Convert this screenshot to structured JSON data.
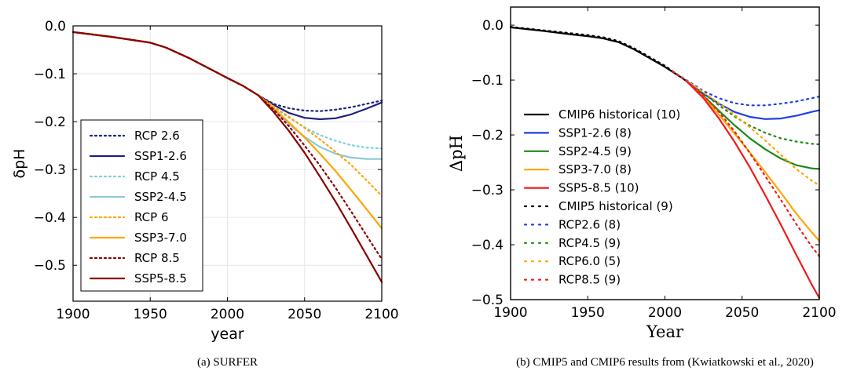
{
  "chart_data": [
    {
      "type": "line",
      "caption": "(a) SURFER",
      "xlabel": "year",
      "ylabel": "δpH",
      "xlim": [
        1900,
        2100
      ],
      "ylim": [
        -0.575,
        0
      ],
      "xticks": [
        1900,
        1950,
        2000,
        2050,
        2100
      ],
      "yticks": [
        0.0,
        -0.1,
        -0.2,
        -0.3,
        -0.4,
        -0.5
      ],
      "ytick_labels": [
        "0.0",
        "−0.1",
        "−0.2",
        "−0.3",
        "−0.4",
        "−0.5"
      ],
      "grid": true,
      "legend_position": "lower-left",
      "common_history": {
        "x": [
          1900,
          1925,
          1950,
          1960,
          1975,
          1990,
          2000,
          2010,
          2020
        ],
        "y": [
          -0.013,
          -0.023,
          -0.035,
          -0.045,
          -0.067,
          -0.092,
          -0.109,
          -0.125,
          -0.145
        ]
      },
      "series": [
        {
          "name": "RCP 2.6",
          "color": "#1a237e",
          "dash": "dot",
          "x": [
            2020,
            2030,
            2040,
            2050,
            2060,
            2070,
            2080,
            2090,
            2100
          ],
          "y": [
            -0.145,
            -0.163,
            -0.172,
            -0.177,
            -0.178,
            -0.175,
            -0.17,
            -0.163,
            -0.156
          ]
        },
        {
          "name": "SSP1-2.6",
          "color": "#1a237e",
          "dash": "solid",
          "x": [
            2020,
            2030,
            2040,
            2050,
            2060,
            2070,
            2080,
            2090,
            2100
          ],
          "y": [
            -0.145,
            -0.165,
            -0.182,
            -0.192,
            -0.195,
            -0.193,
            -0.185,
            -0.173,
            -0.16
          ]
        },
        {
          "name": "RCP 4.5",
          "color": "#7ecfdf",
          "dash": "dot",
          "x": [
            2020,
            2030,
            2040,
            2050,
            2060,
            2070,
            2080,
            2090,
            2100
          ],
          "y": [
            -0.145,
            -0.17,
            -0.192,
            -0.212,
            -0.228,
            -0.24,
            -0.249,
            -0.254,
            -0.256
          ]
        },
        {
          "name": "SSP2-4.5",
          "color": "#8ec9d8",
          "dash": "solid",
          "x": [
            2020,
            2030,
            2040,
            2050,
            2060,
            2070,
            2080,
            2090,
            2100
          ],
          "y": [
            -0.145,
            -0.175,
            -0.205,
            -0.232,
            -0.253,
            -0.267,
            -0.275,
            -0.278,
            -0.278
          ]
        },
        {
          "name": "RCP 6",
          "color": "#ffa500",
          "dash": "dot",
          "x": [
            2020,
            2030,
            2040,
            2050,
            2060,
            2070,
            2080,
            2090,
            2100
          ],
          "y": [
            -0.145,
            -0.168,
            -0.19,
            -0.213,
            -0.237,
            -0.263,
            -0.29,
            -0.322,
            -0.355
          ]
        },
        {
          "name": "SSP3-7.0",
          "color": "#ffa500",
          "dash": "solid",
          "x": [
            2020,
            2030,
            2040,
            2050,
            2060,
            2070,
            2080,
            2090,
            2100
          ],
          "y": [
            -0.145,
            -0.172,
            -0.202,
            -0.233,
            -0.267,
            -0.303,
            -0.342,
            -0.382,
            -0.423
          ]
        },
        {
          "name": "RCP 8.5",
          "color": "#8b0000",
          "dash": "dot",
          "x": [
            2020,
            2030,
            2040,
            2050,
            2060,
            2070,
            2080,
            2090,
            2100
          ],
          "y": [
            -0.145,
            -0.175,
            -0.21,
            -0.25,
            -0.292,
            -0.338,
            -0.387,
            -0.437,
            -0.487
          ]
        },
        {
          "name": "SSP5-8.5",
          "color": "#8b0000",
          "dash": "solid",
          "x": [
            2020,
            2030,
            2040,
            2050,
            2060,
            2070,
            2080,
            2090,
            2100
          ],
          "y": [
            -0.145,
            -0.18,
            -0.22,
            -0.265,
            -0.315,
            -0.367,
            -0.422,
            -0.478,
            -0.535
          ]
        }
      ]
    },
    {
      "type": "line",
      "caption": "(b) CMIP5 and CMIP6 results from (Kwiatkowski et al., 2020)",
      "xlabel": "Year",
      "ylabel": "ΔpH",
      "xlim": [
        1900,
        2100
      ],
      "ylim": [
        -0.5,
        0.033
      ],
      "xticks": [
        1900,
        1950,
        2000,
        2050,
        2100
      ],
      "yticks": [
        0.0,
        -0.1,
        -0.2,
        -0.3,
        -0.4,
        -0.5
      ],
      "ytick_labels": [
        "0.0",
        "−0.1",
        "−0.2",
        "−0.3",
        "−0.4",
        "−0.5"
      ],
      "grid": false,
      "legend_position": "center-left",
      "series": [
        {
          "name": "CMIP6 historical (10)",
          "color": "#000000",
          "dash": "solid",
          "x": [
            1900,
            1920,
            1940,
            1950,
            1960,
            1970,
            1980,
            1990,
            2000,
            2010,
            2014
          ],
          "y": [
            -0.004,
            -0.01,
            -0.017,
            -0.02,
            -0.024,
            -0.031,
            -0.044,
            -0.06,
            -0.076,
            -0.094,
            -0.102
          ]
        },
        {
          "name": "SSP1-2.6 (8)",
          "color": "#1f3fe0",
          "dash": "solid",
          "x": [
            2014,
            2025,
            2035,
            2045,
            2055,
            2065,
            2075,
            2085,
            2095,
            2100
          ],
          "y": [
            -0.102,
            -0.125,
            -0.143,
            -0.158,
            -0.167,
            -0.171,
            -0.17,
            -0.165,
            -0.158,
            -0.155
          ]
        },
        {
          "name": "SSP2-4.5 (9)",
          "color": "#1a8a1a",
          "dash": "solid",
          "x": [
            2014,
            2025,
            2035,
            2045,
            2055,
            2065,
            2075,
            2085,
            2095,
            2100
          ],
          "y": [
            -0.102,
            -0.129,
            -0.156,
            -0.182,
            -0.206,
            -0.226,
            -0.243,
            -0.255,
            -0.261,
            -0.262
          ]
        },
        {
          "name": "SSP3-7.0 (8)",
          "color": "#ffa500",
          "dash": "solid",
          "x": [
            2014,
            2025,
            2035,
            2045,
            2055,
            2065,
            2075,
            2085,
            2095,
            2100
          ],
          "y": [
            -0.102,
            -0.131,
            -0.163,
            -0.197,
            -0.232,
            -0.268,
            -0.305,
            -0.343,
            -0.377,
            -0.393
          ]
        },
        {
          "name": "SSP5-8.5 (10)",
          "color": "#ee1c1c",
          "dash": "solid",
          "x": [
            2014,
            2025,
            2035,
            2045,
            2055,
            2065,
            2075,
            2085,
            2095,
            2100
          ],
          "y": [
            -0.102,
            -0.133,
            -0.17,
            -0.212,
            -0.259,
            -0.31,
            -0.363,
            -0.418,
            -0.472,
            -0.497
          ]
        },
        {
          "name": "CMIP5 historical (9)",
          "color": "#000000",
          "dash": "dot",
          "x": [
            1900,
            1920,
            1940,
            1950,
            1960,
            1970,
            1980,
            1990,
            2000,
            2005
          ],
          "y": [
            -0.003,
            -0.009,
            -0.015,
            -0.018,
            -0.022,
            -0.029,
            -0.042,
            -0.058,
            -0.074,
            -0.084
          ]
        },
        {
          "name": "RCP2.6 (8)",
          "color": "#1f3fe0",
          "dash": "dot",
          "x": [
            2005,
            2015,
            2025,
            2035,
            2045,
            2055,
            2065,
            2075,
            2085,
            2095,
            2100
          ],
          "y": [
            -0.084,
            -0.102,
            -0.12,
            -0.133,
            -0.142,
            -0.146,
            -0.146,
            -0.143,
            -0.139,
            -0.133,
            -0.13
          ]
        },
        {
          "name": "RCP4.5 (9)",
          "color": "#1a8a1a",
          "dash": "dot",
          "x": [
            2005,
            2015,
            2025,
            2035,
            2045,
            2055,
            2065,
            2075,
            2085,
            2095,
            2100
          ],
          "y": [
            -0.084,
            -0.103,
            -0.124,
            -0.146,
            -0.166,
            -0.183,
            -0.196,
            -0.206,
            -0.212,
            -0.216,
            -0.217
          ]
        },
        {
          "name": "RCP6.0 (5)",
          "color": "#ffa500",
          "dash": "dot",
          "x": [
            2005,
            2015,
            2025,
            2035,
            2045,
            2055,
            2065,
            2075,
            2085,
            2095,
            2100
          ],
          "y": [
            -0.084,
            -0.103,
            -0.122,
            -0.142,
            -0.163,
            -0.186,
            -0.21,
            -0.236,
            -0.262,
            -0.283,
            -0.292
          ]
        },
        {
          "name": "RCP8.5 (9)",
          "color": "#ee1c1c",
          "dash": "dot",
          "x": [
            2005,
            2015,
            2025,
            2035,
            2045,
            2055,
            2065,
            2075,
            2085,
            2095,
            2100
          ],
          "y": [
            -0.084,
            -0.104,
            -0.128,
            -0.158,
            -0.193,
            -0.233,
            -0.275,
            -0.318,
            -0.362,
            -0.403,
            -0.421
          ]
        }
      ]
    }
  ]
}
